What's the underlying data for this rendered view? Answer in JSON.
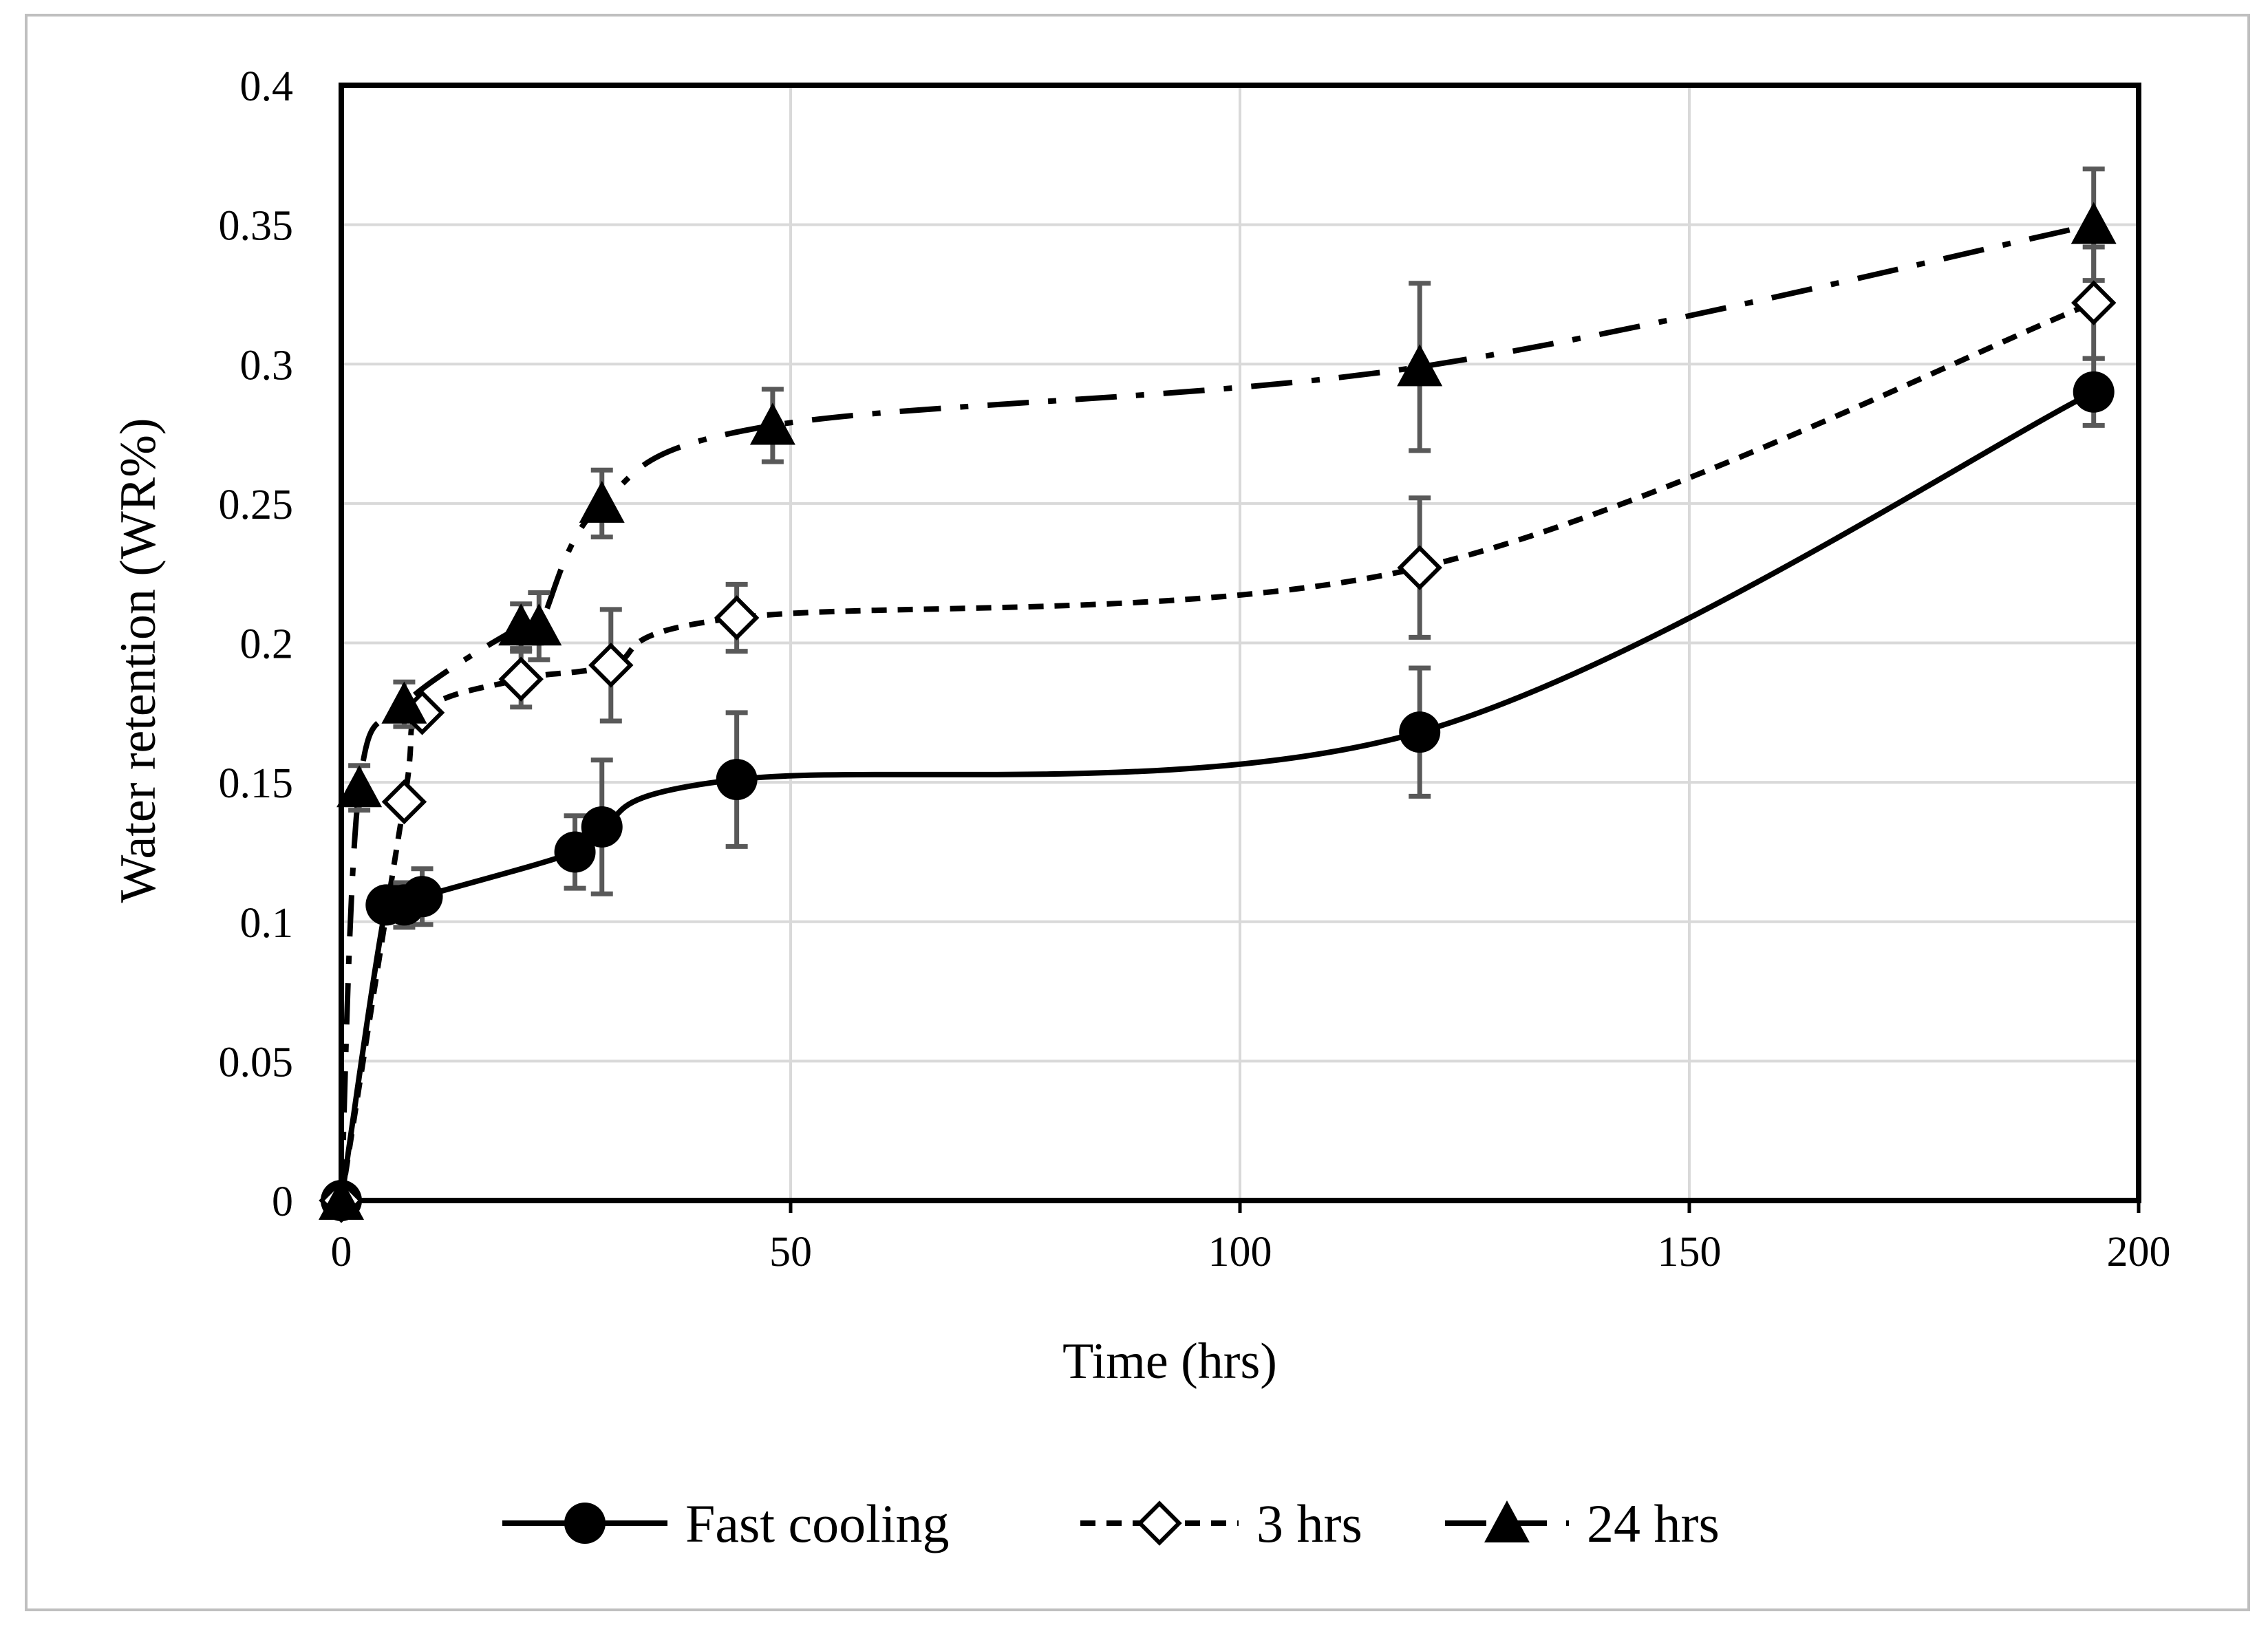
{
  "chart_data": {
    "type": "line",
    "title": "",
    "xlabel": "Time (hrs)",
    "ylabel": "Water retention (WR%)",
    "xlim": [
      0,
      200
    ],
    "ylim": [
      0,
      0.4
    ],
    "x_ticks": [
      0,
      50,
      100,
      150,
      200
    ],
    "y_ticks": [
      0,
      0.05,
      0.1,
      0.15,
      0.2,
      0.25,
      0.3,
      0.35,
      0.4
    ],
    "x_tick_labels": [
      "0",
      "50",
      "100",
      "150",
      "200"
    ],
    "y_tick_labels": [
      "0",
      "0.05",
      "0.1",
      "0.15",
      "0.2",
      "0.25",
      "0.3",
      "0.35",
      "0.4"
    ],
    "grid": true,
    "legend_position": "bottom",
    "series": [
      {
        "name": "Fast cooling",
        "marker": "circle-filled",
        "line_style": "solid",
        "x": [
          0,
          5,
          7,
          9,
          26,
          29,
          44,
          120,
          195
        ],
        "y": [
          0,
          0.106,
          0.106,
          0.109,
          0.125,
          0.134,
          0.151,
          0.168,
          0.29
        ],
        "error": [
          0,
          0,
          0.008,
          0.01,
          0.013,
          0.024,
          0.024,
          0.023,
          0.012
        ]
      },
      {
        "name": "3 hrs",
        "marker": "diamond-open",
        "line_style": "dashed",
        "x": [
          0,
          7,
          9,
          20,
          30,
          44,
          120,
          195
        ],
        "y": [
          0,
          0.143,
          0.175,
          0.187,
          0.192,
          0.209,
          0.227,
          0.322
        ],
        "error": [
          0,
          0,
          0,
          0.01,
          0.02,
          0.012,
          0.025,
          0.02
        ]
      },
      {
        "name": "24 hrs",
        "marker": "triangle-filled",
        "line_style": "dash-dot",
        "x": [
          0,
          2,
          7,
          20,
          22,
          29,
          48,
          120,
          195
        ],
        "y": [
          0,
          0.148,
          0.178,
          0.206,
          0.206,
          0.25,
          0.278,
          0.299,
          0.35
        ],
        "error": [
          0,
          0.008,
          0.008,
          0.008,
          0.012,
          0.012,
          0.013,
          0.03,
          0.02
        ]
      }
    ]
  },
  "colors": {
    "axis": "#000000",
    "grid": "#d9d9d9",
    "series": "#000000",
    "error_bar": "#595959",
    "frame": "#bfbfbf"
  }
}
